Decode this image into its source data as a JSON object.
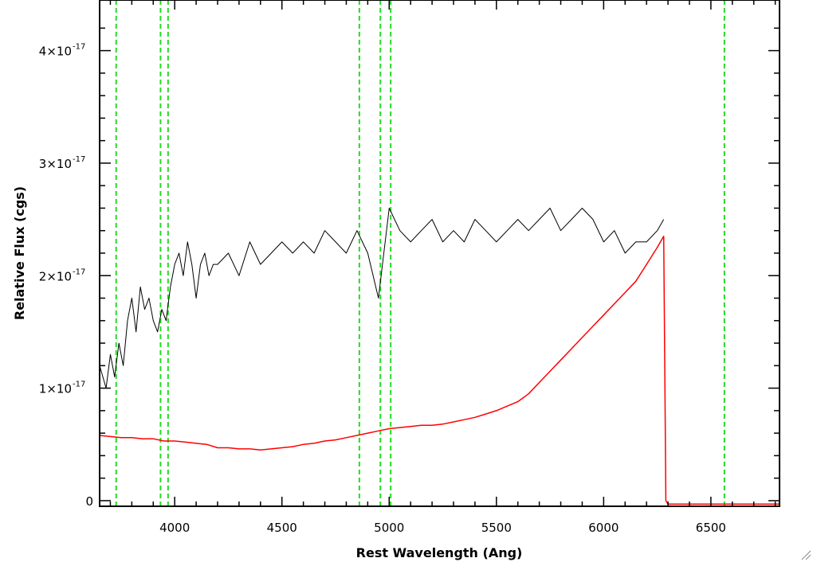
{
  "chart_data": {
    "type": "line",
    "title": "",
    "xlabel": "Rest Wavelength (Ang)",
    "ylabel": "Relative Flux (cgs)",
    "xlim": [
      3650,
      6820
    ],
    "ylim": [
      -0.05,
      4.45
    ],
    "y_scale_exponent": -17,
    "grid": false,
    "legend": "none",
    "x_ticks": [
      {
        "value": 4000,
        "label": "4000"
      },
      {
        "value": 4500,
        "label": "4500"
      },
      {
        "value": 5000,
        "label": "5000"
      },
      {
        "value": 5500,
        "label": "5500"
      },
      {
        "value": 6000,
        "label": "6000"
      },
      {
        "value": 6500,
        "label": "6500"
      }
    ],
    "y_ticks": [
      {
        "value": 0,
        "label": "0"
      },
      {
        "value": 1,
        "label": "1×10",
        "exp": "-17"
      },
      {
        "value": 2,
        "label": "2×10",
        "exp": "-17"
      },
      {
        "value": 3,
        "label": "3×10",
        "exp": "-17"
      },
      {
        "value": 4,
        "label": "4×10",
        "exp": "-17"
      }
    ],
    "vertical_lines": {
      "color": "#22dd22",
      "style": "dashed",
      "x": [
        3727,
        3934,
        3969,
        4861,
        4959,
        5007,
        6563
      ]
    },
    "series": [
      {
        "color": "#000000",
        "x": [
          3650,
          3680,
          3700,
          3720,
          3740,
          3760,
          3780,
          3800,
          3820,
          3840,
          3860,
          3880,
          3900,
          3920,
          3940,
          3960,
          3980,
          4000,
          4020,
          4040,
          4060,
          4080,
          4100,
          4120,
          4140,
          4160,
          4180,
          4200,
          4250,
          4300,
          4350,
          4400,
          4450,
          4500,
          4550,
          4600,
          4650,
          4700,
          4750,
          4800,
          4850,
          4900,
          4950,
          5000,
          5050,
          5100,
          5150,
          5200,
          5250,
          5300,
          5350,
          5400,
          5450,
          5500,
          5550,
          5600,
          5650,
          5700,
          5750,
          5800,
          5850,
          5900,
          5950,
          6000,
          6050,
          6100,
          6150,
          6200,
          6250,
          6280
        ],
        "y": [
          1.2,
          1.0,
          1.3,
          1.1,
          1.4,
          1.2,
          1.6,
          1.8,
          1.5,
          1.9,
          1.7,
          1.8,
          1.6,
          1.5,
          1.7,
          1.6,
          1.9,
          2.1,
          2.2,
          2.0,
          2.3,
          2.1,
          1.8,
          2.1,
          2.2,
          2.0,
          2.1,
          2.1,
          2.2,
          2.0,
          2.3,
          2.1,
          2.2,
          2.3,
          2.2,
          2.3,
          2.2,
          2.4,
          2.3,
          2.2,
          2.4,
          2.2,
          1.8,
          2.6,
          2.4,
          2.3,
          2.4,
          2.5,
          2.3,
          2.4,
          2.3,
          2.5,
          2.4,
          2.3,
          2.4,
          2.5,
          2.4,
          2.5,
          2.6,
          2.4,
          2.5,
          2.6,
          2.5,
          2.3,
          2.4,
          2.2,
          2.3,
          2.3,
          2.4,
          2.5
        ]
      },
      {
        "color": "#ff0000",
        "x": [
          3650,
          3700,
          3750,
          3800,
          3850,
          3900,
          3950,
          4000,
          4050,
          4100,
          4150,
          4200,
          4250,
          4300,
          4350,
          4400,
          4450,
          4500,
          4550,
          4600,
          4650,
          4700,
          4750,
          4800,
          4850,
          4900,
          4950,
          5000,
          5050,
          5100,
          5150,
          5200,
          5250,
          5300,
          5350,
          5400,
          5450,
          5500,
          5550,
          5600,
          5650,
          5700,
          5750,
          5800,
          5850,
          5900,
          5950,
          6000,
          6050,
          6100,
          6150,
          6200,
          6250,
          6280,
          6290,
          6300,
          6820
        ],
        "y": [
          0.58,
          0.57,
          0.56,
          0.56,
          0.55,
          0.55,
          0.53,
          0.53,
          0.52,
          0.51,
          0.5,
          0.47,
          0.47,
          0.46,
          0.46,
          0.45,
          0.46,
          0.47,
          0.48,
          0.5,
          0.51,
          0.53,
          0.54,
          0.56,
          0.58,
          0.6,
          0.62,
          0.64,
          0.65,
          0.66,
          0.67,
          0.67,
          0.68,
          0.7,
          0.72,
          0.74,
          0.77,
          0.8,
          0.84,
          0.88,
          0.95,
          1.05,
          1.15,
          1.25,
          1.35,
          1.45,
          1.55,
          1.65,
          1.75,
          1.85,
          1.95,
          2.1,
          2.25,
          2.35,
          0.0,
          -0.03,
          -0.03
        ]
      }
    ]
  }
}
